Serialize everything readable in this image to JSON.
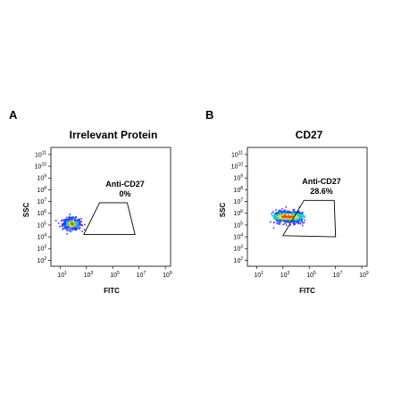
{
  "chart_data": [
    {
      "type": "scatter",
      "panel_label": "A",
      "title": "Irrelevant Protein",
      "xlabel": "FITC",
      "ylabel": "SSC",
      "x_scale": "log",
      "y_scale": "log",
      "x_ticks": [
        1,
        3,
        5,
        7,
        9
      ],
      "y_ticks": [
        2,
        3,
        4,
        5,
        6,
        7,
        8,
        9,
        10,
        11
      ],
      "xlim": [
        0.3,
        9.4
      ],
      "ylim": [
        1.5,
        11.6
      ],
      "gate": {
        "name": "Anti-CD27",
        "percent": "0%",
        "polygon_log10": [
          [
            2.8,
            4.2
          ],
          [
            6.7,
            4.2
          ],
          [
            6.1,
            6.9
          ],
          [
            4.0,
            6.9
          ]
        ]
      },
      "population": {
        "center_log10": [
          1.9,
          5.1
        ],
        "spread_log10": [
          0.35,
          0.25
        ]
      }
    },
    {
      "type": "scatter",
      "panel_label": "B",
      "title": "CD27",
      "xlabel": "FITC",
      "ylabel": "SSC",
      "x_scale": "log",
      "y_scale": "log",
      "x_ticks": [
        1,
        3,
        5,
        7,
        9
      ],
      "y_ticks": [
        2,
        3,
        4,
        5,
        6,
        7,
        8,
        9,
        10,
        11
      ],
      "xlim": [
        0.3,
        9.4
      ],
      "ylim": [
        1.5,
        11.6
      ],
      "gate": {
        "name": "Anti-CD27",
        "percent": "28.6%",
        "polygon_log10": [
          [
            3.0,
            4.1
          ],
          [
            7.0,
            4.0
          ],
          [
            6.9,
            7.1
          ],
          [
            4.6,
            7.1
          ]
        ]
      },
      "population": {
        "center_log10": [
          3.4,
          5.7
        ],
        "spread_log10": [
          1.0,
          0.25
        ]
      }
    }
  ],
  "colors": {
    "axis": "#000000",
    "density_low": "#2b3cff",
    "density_mid": "#19d1c6",
    "density_high": "#f2e10e",
    "density_peak": "#ff3b1f"
  }
}
